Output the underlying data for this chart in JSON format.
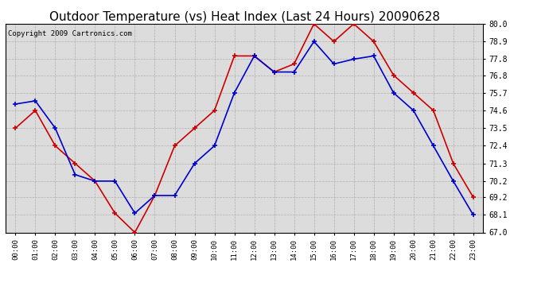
{
  "title": "Outdoor Temperature (vs) Heat Index (Last 24 Hours) 20090628",
  "copyright": "Copyright 2009 Cartronics.com",
  "hours": [
    "00:00",
    "01:00",
    "02:00",
    "03:00",
    "04:00",
    "05:00",
    "06:00",
    "07:00",
    "08:00",
    "09:00",
    "10:00",
    "11:00",
    "12:00",
    "13:00",
    "14:00",
    "15:00",
    "16:00",
    "17:00",
    "18:00",
    "19:00",
    "20:00",
    "21:00",
    "22:00",
    "23:00"
  ],
  "temp": [
    75.0,
    75.2,
    73.5,
    70.6,
    70.2,
    70.2,
    68.2,
    69.3,
    69.3,
    71.3,
    72.4,
    75.7,
    78.0,
    77.0,
    77.0,
    78.9,
    77.5,
    77.8,
    78.0,
    75.7,
    74.6,
    72.4,
    70.2,
    68.1
  ],
  "heat_index": [
    73.5,
    74.6,
    72.4,
    71.3,
    70.2,
    68.2,
    67.0,
    69.3,
    72.4,
    73.5,
    74.6,
    78.0,
    78.0,
    77.0,
    77.5,
    80.0,
    78.9,
    80.0,
    78.9,
    76.8,
    75.7,
    74.6,
    71.3,
    69.2
  ],
  "ylim": [
    67.0,
    80.0
  ],
  "yticks": [
    67.0,
    68.1,
    69.2,
    70.2,
    71.3,
    72.4,
    73.5,
    74.6,
    75.7,
    76.8,
    77.8,
    78.9,
    80.0
  ],
  "temp_color": "#0000cc",
  "heat_color": "#cc0000",
  "bg_color": "#ffffff",
  "plot_bg": "#dcdcdc",
  "grid_color": "#aaaaaa",
  "title_fontsize": 11,
  "copyright_fontsize": 6.5
}
